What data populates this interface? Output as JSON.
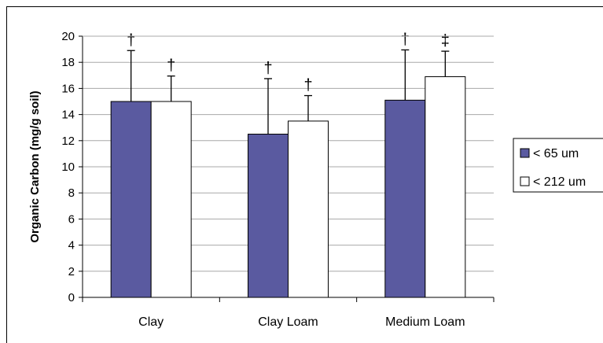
{
  "chart_data": {
    "type": "bar",
    "title": "",
    "xlabel": "",
    "ylabel": "Organic Carbon (mg/g soil)",
    "ylim": [
      0,
      20
    ],
    "yticks": [
      0,
      2,
      4,
      6,
      8,
      10,
      12,
      14,
      16,
      18,
      20
    ],
    "grid": true,
    "legend_position": "right",
    "categories": [
      "Clay",
      "Clay Loam",
      "Medium Loam"
    ],
    "series": [
      {
        "name": "< 65 um",
        "color": "#5a5aa0",
        "values": [
          15.0,
          12.5,
          15.1
        ],
        "error_plus": [
          3.9,
          4.25,
          3.85
        ],
        "markers": [
          "†",
          "†",
          "†"
        ]
      },
      {
        "name": "< 212 um",
        "color": "#ffffff",
        "values": [
          15.0,
          13.5,
          16.9
        ],
        "error_plus": [
          1.95,
          1.95,
          1.95
        ],
        "markers": [
          "†",
          "†",
          "‡"
        ]
      }
    ]
  }
}
